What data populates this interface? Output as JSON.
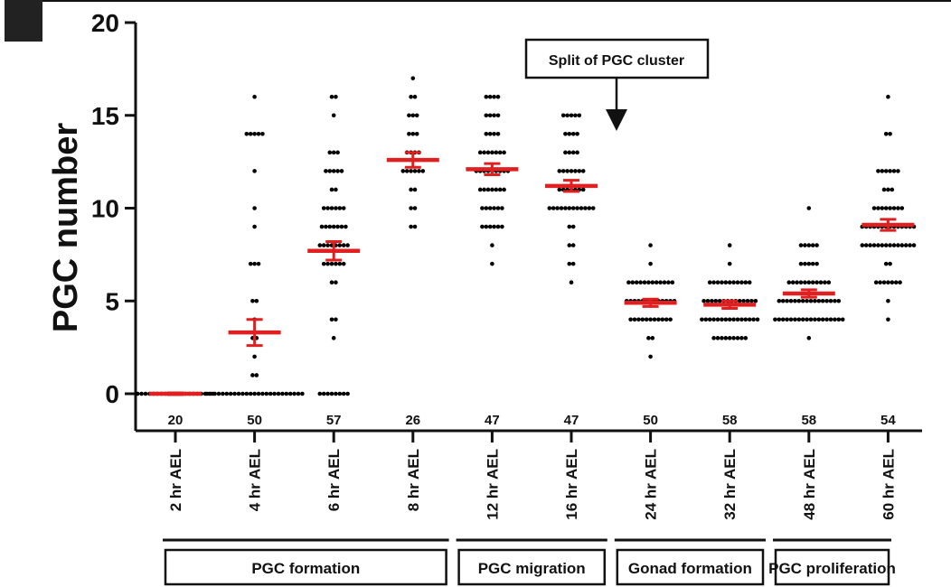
{
  "chart_data": {
    "type": "scatter",
    "title": "",
    "xlabel": "",
    "ylabel": "PGC number",
    "ylim": [
      0,
      20
    ],
    "yticks": [
      0,
      5,
      10,
      15,
      20
    ],
    "categories": [
      "2 hr AEL",
      "4 hr AEL",
      "6 hr AEL",
      "8 hr AEL",
      "12 hr AEL",
      "16 hr AEL",
      "24 hr AEL",
      "32 hr AEL",
      "48 hr AEL",
      "60 hr AEL"
    ],
    "n": [
      "20",
      "50",
      "57",
      "26",
      "47",
      "47",
      "50",
      "58",
      "58",
      "54"
    ],
    "mean": [
      0,
      3.3,
      7.7,
      12.6,
      12.1,
      11.2,
      4.9,
      4.8,
      5.4,
      9.1
    ],
    "sem": [
      0.05,
      0.7,
      0.5,
      0.4,
      0.3,
      0.3,
      0.2,
      0.2,
      0.2,
      0.3
    ],
    "points": [
      [
        [
          0,
          20
        ]
      ],
      [
        [
          0,
          25
        ],
        [
          1,
          2
        ],
        [
          2,
          1
        ],
        [
          3,
          2
        ],
        [
          4,
          1
        ],
        [
          5,
          2
        ],
        [
          7,
          3
        ],
        [
          9,
          1
        ],
        [
          10,
          1
        ],
        [
          12,
          1
        ],
        [
          14,
          5
        ],
        [
          16,
          1
        ]
      ],
      [
        [
          0,
          8
        ],
        [
          3,
          1
        ],
        [
          4,
          2
        ],
        [
          6,
          2
        ],
        [
          7,
          6
        ],
        [
          8,
          8
        ],
        [
          9,
          7
        ],
        [
          10,
          6
        ],
        [
          11,
          2
        ],
        [
          12,
          5
        ],
        [
          13,
          3
        ],
        [
          15,
          1
        ],
        [
          16,
          2
        ]
      ],
      [
        [
          9,
          2
        ],
        [
          10,
          2
        ],
        [
          11,
          2
        ],
        [
          12,
          6
        ],
        [
          13,
          4
        ],
        [
          14,
          3
        ],
        [
          15,
          3
        ],
        [
          16,
          2
        ],
        [
          17,
          1
        ]
      ],
      [
        [
          7,
          1
        ],
        [
          8,
          1
        ],
        [
          9,
          6
        ],
        [
          10,
          6
        ],
        [
          11,
          7
        ],
        [
          12,
          9
        ],
        [
          13,
          7
        ],
        [
          14,
          4
        ],
        [
          15,
          4
        ],
        [
          16,
          4
        ]
      ],
      [
        [
          6,
          1
        ],
        [
          7,
          2
        ],
        [
          8,
          2
        ],
        [
          9,
          2
        ],
        [
          10,
          12
        ],
        [
          11,
          7
        ],
        [
          12,
          7
        ],
        [
          13,
          4
        ],
        [
          14,
          4
        ],
        [
          15,
          5
        ]
      ],
      [
        [
          2,
          1
        ],
        [
          3,
          2
        ],
        [
          4,
          11
        ],
        [
          5,
          13
        ],
        [
          6,
          12
        ],
        [
          7,
          1
        ],
        [
          8,
          1
        ]
      ],
      [
        [
          3,
          9
        ],
        [
          4,
          15
        ],
        [
          5,
          14
        ],
        [
          6,
          11
        ],
        [
          7,
          1
        ],
        [
          8,
          1
        ]
      ],
      [
        [
          3,
          1
        ],
        [
          4,
          18
        ],
        [
          5,
          16
        ],
        [
          6,
          11
        ],
        [
          7,
          5
        ],
        [
          8,
          5
        ],
        [
          10,
          1
        ]
      ],
      [
        [
          4,
          1
        ],
        [
          5,
          1
        ],
        [
          6,
          7
        ],
        [
          7,
          2
        ],
        [
          8,
          14
        ],
        [
          9,
          14
        ],
        [
          10,
          8
        ],
        [
          11,
          3
        ],
        [
          12,
          6
        ],
        [
          14,
          2
        ],
        [
          16,
          1
        ]
      ]
    ],
    "groups": [
      {
        "label": "PGC formation",
        "start": 0,
        "end": 3
      },
      {
        "label": "PGC migration",
        "start": 3,
        "end": 5
      },
      {
        "label": "Gonad formation",
        "start": 5,
        "end": 7
      },
      {
        "label": "PGC proliferation",
        "start": 7,
        "end": 9
      }
    ],
    "annotation": {
      "label": "Split of PGC cluster"
    },
    "grid": false,
    "colors": {
      "points": "#000000",
      "mean": "#e02020",
      "axis": "#111111"
    }
  }
}
